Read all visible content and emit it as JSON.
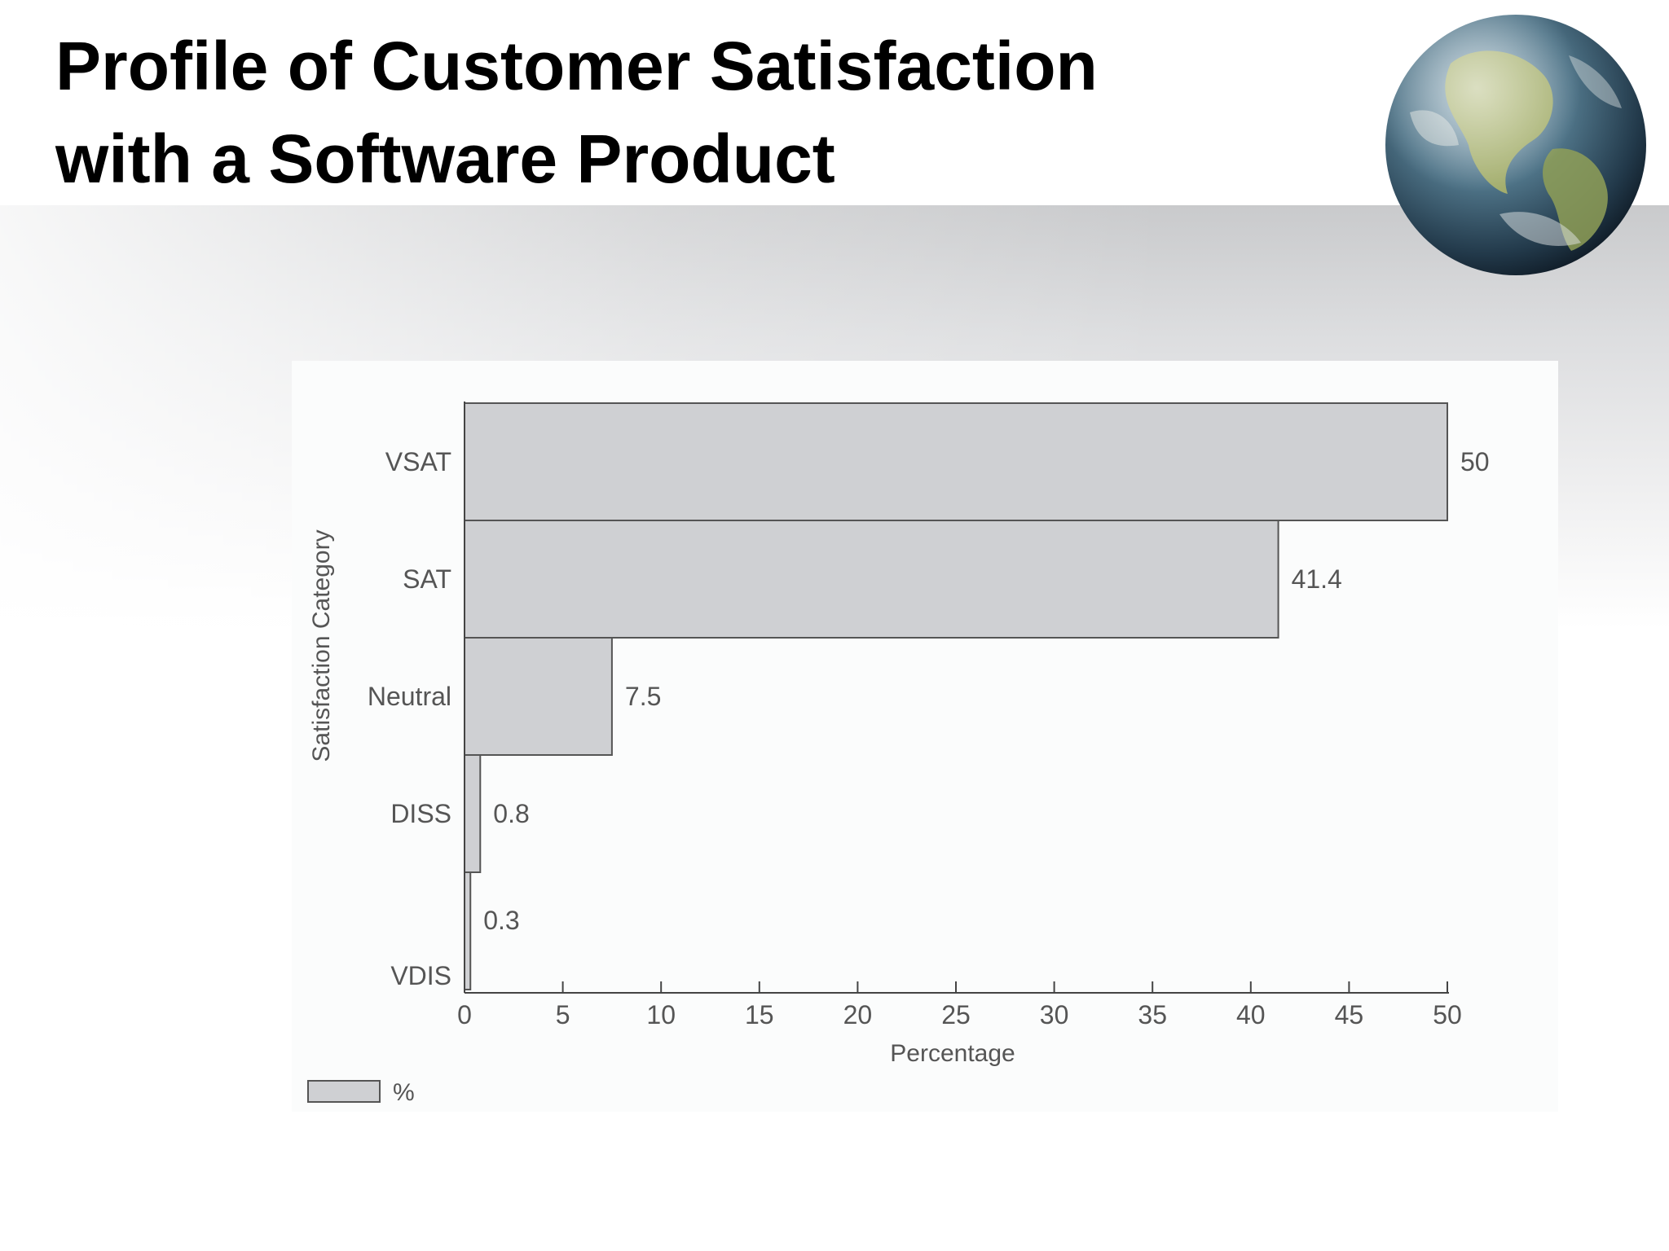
{
  "slide": {
    "title_line1": "Profile of Customer Satisfaction",
    "title_line2": "with a Software Product",
    "decoration": "globe-icon"
  },
  "chart_data": {
    "type": "bar",
    "orientation": "horizontal",
    "categories": [
      "VSAT",
      "SAT",
      "Neutral",
      "DISS",
      "VDIS"
    ],
    "values": [
      50,
      41.4,
      7.5,
      0.8,
      0.3
    ],
    "series": [
      {
        "name": "%",
        "values": [
          50,
          41.4,
          7.5,
          0.8,
          0.3
        ]
      }
    ],
    "data_labels": [
      "50",
      "41.4",
      "7.5",
      "0.8",
      "0.3"
    ],
    "xlabel": "Percentage",
    "ylabel": "Satisfaction Category",
    "xlim": [
      0,
      50
    ],
    "xticks": [
      0,
      5,
      10,
      15,
      20,
      25,
      30,
      35,
      40,
      45,
      50
    ],
    "legend": {
      "entries": [
        "%"
      ],
      "position": "bottom-left"
    },
    "grid": false,
    "colors": {
      "bar_fill": "#cfd0d3",
      "bar_stroke": "#555555",
      "axis": "#444444",
      "text": "#555555"
    }
  }
}
